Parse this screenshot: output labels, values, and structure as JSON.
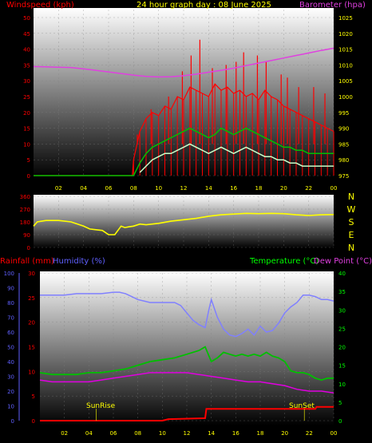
{
  "colors": {
    "wind_speed": "#ff0000",
    "wind_avg": "#00c000",
    "wind_gust_low": "#c8ffc8",
    "barometer": "#e040e0",
    "direction": "#ffff00",
    "rainfall": "#ff0000",
    "humidity": "#8080ff",
    "temperature": "#00c000",
    "dew_point": "#e000e0",
    "tick_label": "#ffff00",
    "right_tick_label": "#ffff00",
    "yellow_text": "#ffff00",
    "red_text": "#ff0000",
    "magenta_text": "#e040e0",
    "blue_text": "#6060ff",
    "green_text": "#00ff00",
    "panel_top": "#ffffff",
    "panel_bottom": "#000000"
  },
  "header": {
    "title": "24 hour graph day : 08 June 2025"
  },
  "chart_data": [
    {
      "type": "line",
      "ylabel_left": "Windspeed (kph)",
      "ylabel_right": "Barometer (hpa)",
      "x_ticks": [
        "02",
        "04",
        "06",
        "08",
        "10",
        "12",
        "14",
        "16",
        "18",
        "20",
        "22",
        "00"
      ],
      "y_ticks_left": [
        "0",
        "5",
        "10",
        "15",
        "20",
        "25",
        "30",
        "35",
        "40",
        "45",
        "50"
      ],
      "y_ticks_right": [
        "975",
        "980",
        "985",
        "990",
        "995",
        "1000",
        "1005",
        "1010",
        "1015",
        "1020",
        "1025"
      ],
      "ylim_left": [
        0,
        50
      ],
      "ylim_right": [
        975,
        1025
      ],
      "grid": true,
      "series": [
        {
          "key": "barometer",
          "x": [
            0,
            1,
            2,
            3,
            4,
            5,
            6,
            7,
            8,
            9,
            10,
            11,
            12,
            13,
            14,
            15,
            16,
            17,
            18,
            19,
            20,
            21,
            22,
            23,
            24
          ],
          "values": [
            1009.5,
            1009.4,
            1009.3,
            1009.2,
            1008.8,
            1008.3,
            1007.8,
            1007.3,
            1006.8,
            1006.4,
            1006.2,
            1006.3,
            1006.6,
            1007.1,
            1007.7,
            1008.3,
            1009.0,
            1009.8,
            1010.6,
            1011.4,
            1012.2,
            1013.0,
            1013.8,
            1014.6,
            1015.3
          ]
        },
        {
          "key": "wind_speed",
          "x": [
            0,
            7.9,
            8.0,
            8.5,
            9,
            9.5,
            10,
            10.5,
            11,
            11.5,
            12,
            12.5,
            13,
            13.5,
            14,
            14.5,
            15,
            15.5,
            16,
            16.5,
            17,
            17.5,
            18,
            18.5,
            19,
            19.5,
            20,
            20.5,
            21,
            21.5,
            22,
            22.5,
            23,
            23.5,
            24
          ],
          "values": [
            0,
            0,
            5,
            14,
            18,
            20,
            19,
            22,
            21,
            25,
            24,
            28,
            27,
            26,
            25,
            29,
            27,
            28,
            26,
            27,
            25,
            26,
            24,
            27,
            25,
            24,
            22,
            21,
            20,
            19,
            18,
            17,
            16,
            15,
            14
          ]
        },
        {
          "key": "wind_gust_peak",
          "x": [
            8.3,
            9.4,
            10.8,
            11.9,
            12.6,
            13.3,
            14.3,
            15.4,
            16.2,
            16.8,
            17.9,
            18.6,
            19.8,
            20.3,
            21.2,
            22.4,
            23.3
          ],
          "values": [
            13,
            21,
            25,
            33,
            38,
            43,
            34,
            35,
            36,
            39,
            38,
            36,
            32,
            31,
            28,
            28,
            26
          ]
        },
        {
          "key": "wind_avg",
          "x": [
            0,
            8,
            8.5,
            9,
            9.5,
            10,
            10.5,
            11,
            11.5,
            12,
            12.5,
            13,
            13.5,
            14,
            14.5,
            15,
            15.5,
            16,
            16.5,
            17,
            17.5,
            18,
            18.5,
            19,
            19.5,
            20,
            20.5,
            21,
            21.5,
            22,
            22.5,
            23,
            23.5,
            24
          ],
          "values": [
            0,
            0,
            4,
            7,
            9,
            10,
            11,
            12,
            13,
            14,
            15,
            14,
            13,
            12,
            13,
            15,
            14,
            13,
            14,
            15,
            14,
            13,
            12,
            11,
            10,
            9,
            9,
            8,
            8,
            7,
            7,
            7,
            7,
            7
          ]
        },
        {
          "key": "wind_gust_low",
          "x": [
            8.5,
            9,
            9.5,
            10,
            10.5,
            11,
            11.5,
            12,
            12.5,
            13,
            13.5,
            14,
            14.5,
            15,
            15.5,
            16,
            16.5,
            17,
            17.5,
            18,
            18.5,
            19,
            19.5,
            20,
            20.5,
            21,
            21.5,
            22,
            22.5,
            23,
            23.5,
            24
          ],
          "values": [
            1,
            3,
            5,
            6,
            7,
            7,
            8,
            9,
            10,
            9,
            8,
            7,
            8,
            9,
            8,
            7,
            8,
            9,
            8,
            7,
            6,
            6,
            5,
            5,
            4,
            4,
            3,
            3,
            3,
            3,
            3,
            3
          ]
        }
      ]
    },
    {
      "type": "line",
      "ylabel_right": [
        "N",
        "W",
        "S",
        "E",
        "N"
      ],
      "y_ticks_left": [
        "360",
        "270",
        "180",
        "90",
        "0"
      ],
      "ylim": [
        0,
        360
      ],
      "grid": true,
      "series": [
        {
          "key": "direction",
          "x": [
            0,
            0.3,
            1,
            2,
            3,
            4,
            4.5,
            5,
            5.5,
            6,
            6.5,
            7,
            7.3,
            7.6,
            8,
            8.5,
            9,
            9.5,
            10,
            11,
            12,
            13,
            14,
            15,
            16,
            17,
            18,
            19,
            20,
            21,
            22,
            23,
            24
          ],
          "values": [
            150,
            180,
            190,
            190,
            180,
            150,
            130,
            125,
            120,
            90,
            90,
            150,
            140,
            145,
            150,
            165,
            160,
            165,
            170,
            185,
            195,
            205,
            220,
            230,
            235,
            240,
            238,
            240,
            238,
            230,
            225,
            230,
            232
          ]
        }
      ]
    },
    {
      "type": "line",
      "ylabel_left": "Rainfall (mm)",
      "ylabel_left_2": "Humidity (%)",
      "ylabel_right": "Temperature (°C)",
      "ylabel_right_2": "Dew Point (°C)",
      "y_ticks_humidity": [
        "0",
        "10",
        "20",
        "30",
        "40",
        "50",
        "60",
        "70",
        "80",
        "90",
        "100"
      ],
      "y_ticks_rain": [
        "0",
        "5",
        "10",
        "15",
        "20",
        "25",
        "30"
      ],
      "y_ticks_temp": [
        "0",
        "5",
        "10",
        "15",
        "20",
        "25",
        "30",
        "35",
        "40"
      ],
      "ylim_humidity": [
        0,
        100
      ],
      "ylim_rain": [
        0,
        30
      ],
      "ylim_temp": [
        0,
        40
      ],
      "annotations": [
        "SunRise",
        "SunSet"
      ],
      "grid": true,
      "series": [
        {
          "key": "humidity",
          "x": [
            0,
            1,
            2,
            3,
            4,
            5,
            6,
            6.5,
            7,
            7.5,
            8,
            8.5,
            9,
            10,
            11,
            11.5,
            12,
            12.5,
            13,
            13.5,
            13.8,
            14,
            14.5,
            15,
            15.5,
            16,
            16.5,
            17,
            17.5,
            18,
            18.5,
            19,
            19.5,
            20,
            20.5,
            21,
            21.5,
            22,
            22.5,
            23,
            23.5,
            24
          ],
          "values": [
            85,
            85,
            85,
            86,
            86,
            86,
            87,
            87,
            86,
            84,
            82,
            81,
            80,
            80,
            80,
            78,
            73,
            68,
            65,
            63,
            75,
            82,
            70,
            62,
            58,
            57,
            59,
            62,
            58,
            64,
            60,
            61,
            66,
            73,
            77,
            80,
            85,
            85,
            84,
            82,
            82,
            81
          ]
        },
        {
          "key": "temperature",
          "x": [
            0,
            1,
            2,
            3,
            4,
            5,
            6,
            7,
            8,
            9,
            10,
            11,
            12,
            13,
            13.5,
            14,
            14.5,
            15,
            15.5,
            16,
            16.5,
            17,
            17.5,
            18,
            18.5,
            19,
            19.5,
            20,
            20.5,
            21,
            21.5,
            22,
            22.5,
            23,
            23.5,
            24
          ],
          "values": [
            13,
            12.5,
            12.5,
            12.5,
            13,
            13,
            13.5,
            14,
            15,
            16,
            16.5,
            17,
            18,
            19,
            20,
            16,
            17,
            18.5,
            18,
            17.5,
            18,
            17.5,
            18,
            17.5,
            18.5,
            17.5,
            17,
            16,
            13.5,
            13,
            13,
            12.5,
            11.5,
            11,
            11.5,
            11.5
          ]
        },
        {
          "key": "dew_point",
          "x": [
            0,
            1,
            2,
            3,
            4,
            5,
            6,
            7,
            8,
            9,
            10,
            11,
            12,
            13,
            14,
            15,
            16,
            17,
            18,
            19,
            20,
            21,
            22,
            23,
            24
          ],
          "values": [
            11,
            10.5,
            10.5,
            10.5,
            10.5,
            11,
            11.5,
            12,
            12.5,
            13,
            13,
            13,
            13,
            12.5,
            12,
            11.5,
            11,
            10.5,
            10.5,
            10,
            9.5,
            8.5,
            8,
            8,
            7.5
          ]
        },
        {
          "key": "rainfall",
          "x": [
            0,
            10,
            10.5,
            13.5,
            13.6,
            22.5,
            22.6,
            24
          ],
          "values": [
            0,
            0,
            0.3,
            0.5,
            2.4,
            2.4,
            2.8,
            2.8
          ]
        }
      ]
    }
  ],
  "labels": {
    "sunrise": "SunRise",
    "sunset": "SunSet",
    "windspeed": "Windspeed (kph)",
    "barometer": "Barometer (hpa)",
    "rainfall": "Rainfall (mm)",
    "humidity": "Humidity (%)",
    "temperature": "Temperature (°C)",
    "dew_point": "Dew Point (°C)"
  }
}
